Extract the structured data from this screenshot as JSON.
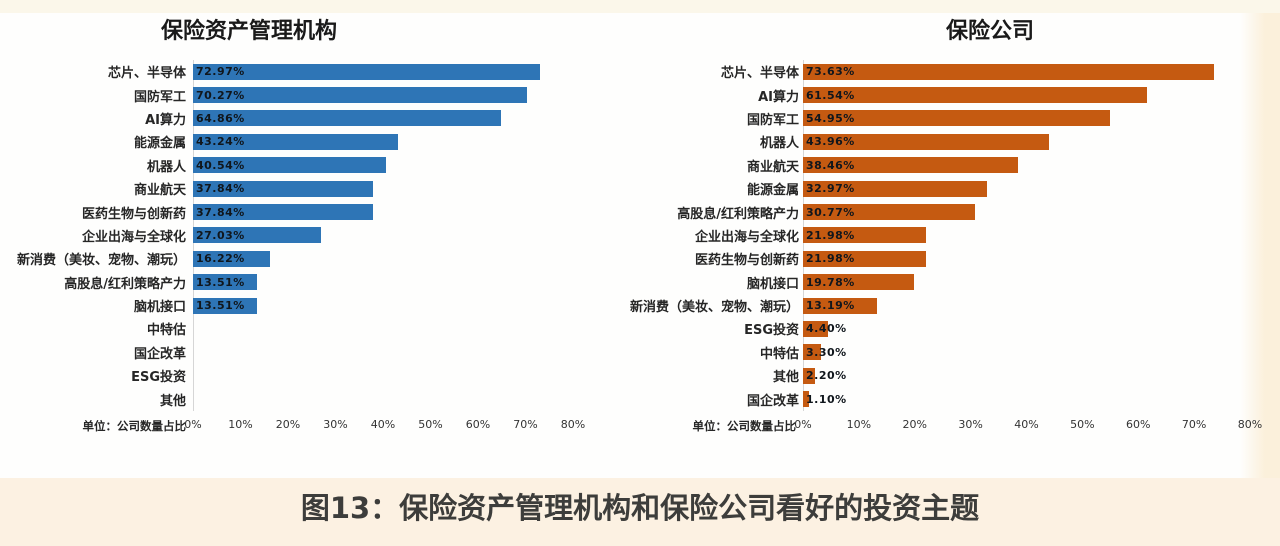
{
  "caption": "图13：保险资产管理机构和保险公司看好的投资主题",
  "colors": {
    "left_bar": "#2E75B6",
    "right_bar": "#C55A11",
    "top_strip": "#FBF7EA",
    "right_strip": "#FBF0DB",
    "caption_band": "#FCF1E2",
    "axis_line": "#D6D6D6"
  },
  "chart_data": [
    {
      "type": "bar",
      "orientation": "horizontal",
      "title": "保险资产管理机构",
      "unit_label": "单位：公司数量占比",
      "bar_color": "#2E75B6",
      "xlabel": "",
      "ylabel": "",
      "xlim": [
        0,
        80
      ],
      "xticks": [
        "0%",
        "10%",
        "20%",
        "30%",
        "40%",
        "50%",
        "60%",
        "70%",
        "80%"
      ],
      "grid": false,
      "legend": null,
      "categories": [
        "芯片、半导体",
        "国防军工",
        "AI算力",
        "能源金属",
        "机器人",
        "商业航天",
        "医药生物与创新药",
        "企业出海与全球化",
        "新消费（美妆、宠物、潮玩）",
        "高股息/红利策略产力",
        "脑机接口",
        "中特估",
        "国企改革",
        "ESG投资",
        "其他"
      ],
      "values": [
        72.97,
        70.27,
        64.86,
        43.24,
        40.54,
        37.84,
        37.84,
        27.03,
        16.22,
        13.51,
        13.51,
        0,
        0,
        0,
        0
      ],
      "value_labels": [
        "72.97%",
        "70.27%",
        "64.86%",
        "43.24%",
        "40.54%",
        "37.84%",
        "37.84%",
        "27.03%",
        "16.22%",
        "13.51%",
        "13.51%",
        "",
        "",
        "",
        ""
      ]
    },
    {
      "type": "bar",
      "orientation": "horizontal",
      "title": "保险公司",
      "unit_label": "单位：公司数量占比",
      "bar_color": "#C55A11",
      "xlabel": "",
      "ylabel": "",
      "xlim": [
        0,
        80
      ],
      "xticks": [
        "0%",
        "10%",
        "20%",
        "30%",
        "40%",
        "50%",
        "60%",
        "70%",
        "80%"
      ],
      "grid": false,
      "legend": null,
      "categories": [
        "芯片、半导体",
        "AI算力",
        "国防军工",
        "机器人",
        "商业航天",
        "能源金属",
        "高股息/红利策略产力",
        "企业出海与全球化",
        "医药生物与创新药",
        "脑机接口",
        "新消费（美妆、宠物、潮玩）",
        "ESG投资",
        "中特估",
        "其他",
        "国企改革"
      ],
      "values": [
        73.63,
        61.54,
        54.95,
        43.96,
        38.46,
        32.97,
        30.77,
        21.98,
        21.98,
        19.78,
        13.19,
        4.4,
        3.3,
        2.2,
        1.1
      ],
      "value_labels": [
        "73.63%",
        "61.54%",
        "54.95%",
        "43.96%",
        "38.46%",
        "32.97%",
        "30.77%",
        "21.98%",
        "21.98%",
        "19.78%",
        "13.19%",
        "4.40%",
        "3.30%",
        "2.20%",
        "1.10%"
      ]
    }
  ]
}
